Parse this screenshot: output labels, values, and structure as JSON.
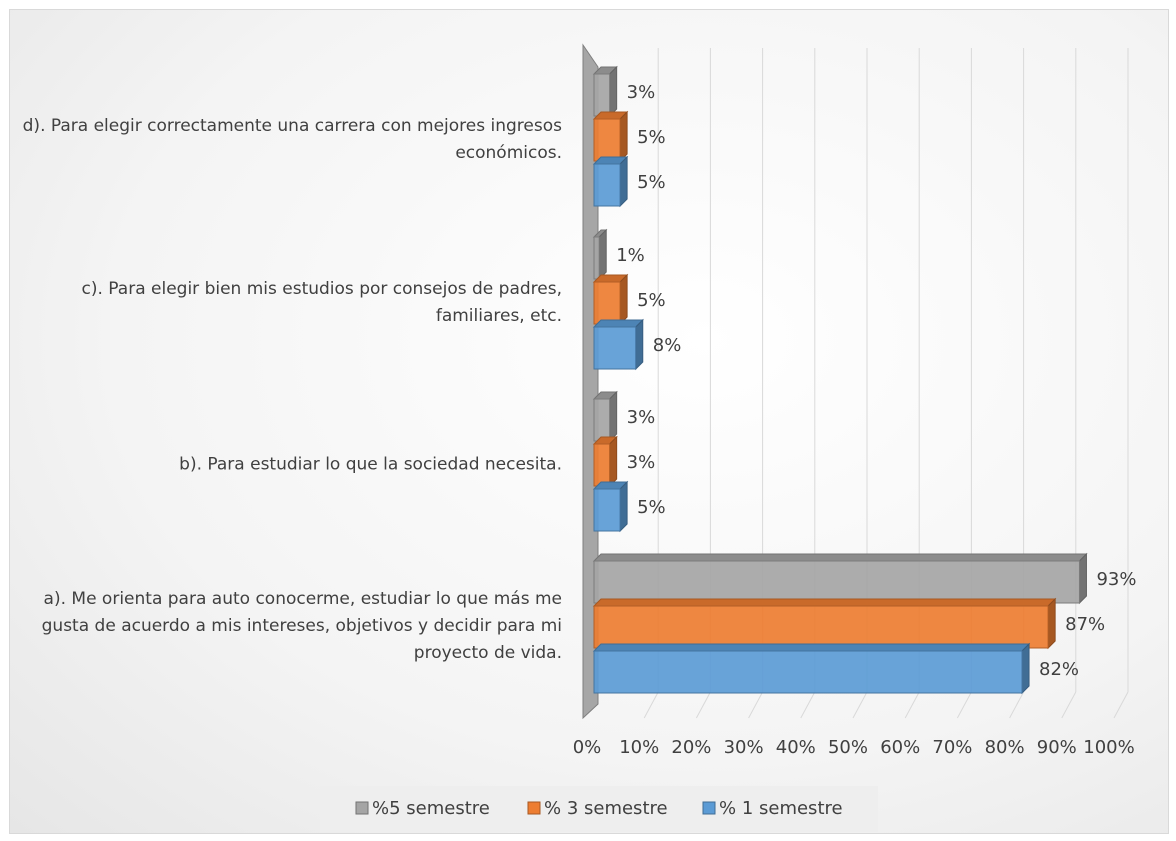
{
  "chart_data": {
    "type": "bar3d-horizontal",
    "categories": [
      "a). Me orienta para auto conocerme, estudiar lo que más me gusta de acuerdo a mis intereses, objetivos y decidir para mi proyecto de vida.",
      "b). Para estudiar lo que la sociedad necesita.",
      "c). Para elegir bien mis estudios por consejos de padres, familiares, etc.",
      "d). Para elegir correctamente una carrera con mejores ingresos económicos."
    ],
    "series": [
      {
        "name": "%5 semestre",
        "color": "#a5a5a5",
        "values": [
          93,
          3,
          1,
          3
        ],
        "value_labels": [
          "93%",
          "3%",
          "1%",
          "3%"
        ]
      },
      {
        "name": "% 3 semestre",
        "color": "#ed7d31",
        "values": [
          87,
          3,
          5,
          5
        ],
        "value_labels": [
          "87%",
          "3%",
          "5%",
          "5%"
        ]
      },
      {
        "name": "% 1 semestre",
        "color": "#5b9bd5",
        "values": [
          82,
          5,
          8,
          5
        ],
        "value_labels": [
          "82%",
          "5%",
          "8%",
          "5%"
        ]
      }
    ],
    "xlim": [
      0,
      100
    ],
    "xticks": [
      {
        "value": 0,
        "label": "0%"
      },
      {
        "value": 10,
        "label": "10%"
      },
      {
        "value": 20,
        "label": "20%"
      },
      {
        "value": 30,
        "label": "30%"
      },
      {
        "value": 40,
        "label": "40%"
      },
      {
        "value": 50,
        "label": "50%"
      },
      {
        "value": 60,
        "label": "60%"
      },
      {
        "value": 70,
        "label": "70%"
      },
      {
        "value": 80,
        "label": "80%"
      },
      {
        "value": 90,
        "label": "90%"
      },
      {
        "value": 100,
        "label": "100%"
      }
    ],
    "grid": true,
    "legend": "bottom"
  }
}
